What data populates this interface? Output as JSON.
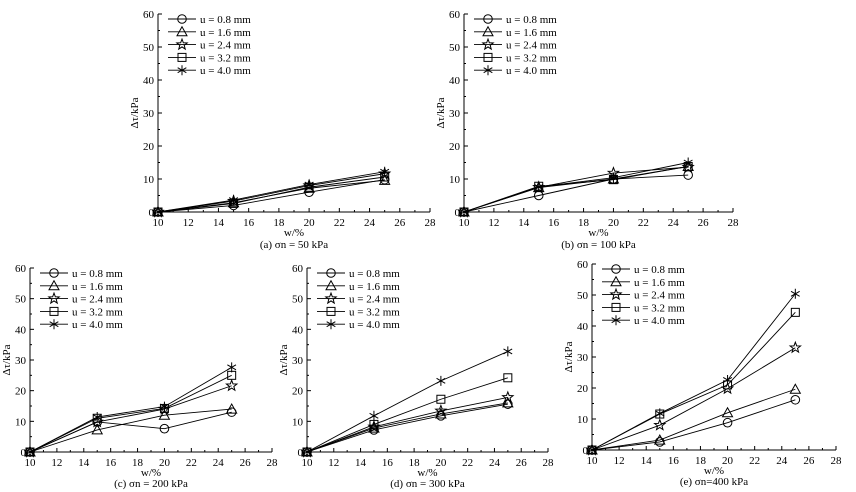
{
  "chart_data": [
    {
      "type": "line",
      "caption": "(a) σn = 50 kPa",
      "xlabel": "w/%",
      "ylabel": "Δτ/kPa",
      "xlim": [
        10,
        28
      ],
      "ylim": [
        0,
        60
      ],
      "xticks": [
        "10",
        "12",
        "14",
        "16",
        "18",
        "20",
        "22",
        "24",
        "26",
        "28"
      ],
      "yticks": [
        "0",
        "10",
        "20",
        "30",
        "40",
        "50",
        "60"
      ],
      "legend_position": "top-left",
      "x": [
        10,
        15,
        20,
        25
      ],
      "series": [
        {
          "name": "u = 0.8 mm",
          "marker": "circle",
          "values": [
            0,
            2.0,
            6.0,
            9.8
          ]
        },
        {
          "name": "u = 1.6 mm",
          "marker": "triangle",
          "values": [
            0,
            2.8,
            7.2,
            9.6
          ]
        },
        {
          "name": "u = 2.4 mm",
          "marker": "star",
          "values": [
            0,
            3.3,
            8.0,
            11.6
          ]
        },
        {
          "name": "u = 3.2 mm",
          "marker": "square",
          "values": [
            0,
            2.6,
            7.5,
            10.6
          ]
        },
        {
          "name": "u = 4.0 mm",
          "marker": "asterisk",
          "values": [
            0,
            3.6,
            8.3,
            12.2
          ]
        }
      ]
    },
    {
      "type": "line",
      "caption": "(b) σn = 100 kPa",
      "xlabel": "w/%",
      "ylabel": "Δτ/kPa",
      "xlim": [
        10,
        28
      ],
      "ylim": [
        0,
        60
      ],
      "xticks": [
        "10",
        "12",
        "14",
        "16",
        "18",
        "20",
        "22",
        "24",
        "26",
        "28"
      ],
      "yticks": [
        "0",
        "10",
        "20",
        "30",
        "40",
        "50",
        "60"
      ],
      "legend_position": "top-left",
      "x": [
        10,
        15,
        20,
        25
      ],
      "series": [
        {
          "name": "u = 0.8 mm",
          "marker": "circle",
          "values": [
            0,
            5.0,
            10.0,
            11.2
          ]
        },
        {
          "name": "u = 1.6 mm",
          "marker": "triangle",
          "values": [
            0,
            7.4,
            10.0,
            13.8
          ]
        },
        {
          "name": "u = 2.4 mm",
          "marker": "star",
          "values": [
            0,
            7.5,
            11.8,
            13.6
          ]
        },
        {
          "name": "u = 3.2 mm",
          "marker": "square",
          "values": [
            0,
            7.8,
            9.8,
            13.8
          ]
        },
        {
          "name": "u = 4.0 mm",
          "marker": "asterisk",
          "values": [
            0,
            7.6,
            10.4,
            15.0
          ]
        }
      ]
    },
    {
      "type": "line",
      "caption": "(c) σn = 200 kPa",
      "xlabel": "w/%",
      "ylabel": "Δτ/kPa",
      "xlim": [
        10,
        28
      ],
      "ylim": [
        0,
        60
      ],
      "xticks": [
        "10",
        "12",
        "14",
        "16",
        "18",
        "20",
        "22",
        "24",
        "26",
        "28"
      ],
      "yticks": [
        "0",
        "10",
        "20",
        "30",
        "40",
        "50",
        "60"
      ],
      "legend_position": "top-left",
      "x": [
        10,
        15,
        20,
        25
      ],
      "series": [
        {
          "name": "u = 0.8 mm",
          "marker": "circle",
          "values": [
            0,
            9.8,
            7.6,
            13.0
          ]
        },
        {
          "name": "u = 1.6 mm",
          "marker": "triangle",
          "values": [
            0,
            7.2,
            12.0,
            14.0
          ]
        },
        {
          "name": "u = 2.4 mm",
          "marker": "star",
          "values": [
            0,
            9.8,
            14.0,
            21.6
          ]
        },
        {
          "name": "u = 3.2 mm",
          "marker": "square",
          "values": [
            0,
            11.0,
            14.2,
            25.0
          ]
        },
        {
          "name": "u = 4.0 mm",
          "marker": "asterisk",
          "values": [
            0,
            11.4,
            14.8,
            27.6
          ]
        }
      ]
    },
    {
      "type": "line",
      "caption": "(d) σn = 300 kPa",
      "xlabel": "w/%",
      "ylabel": "Δτ/kPa",
      "xlim": [
        10,
        28
      ],
      "ylim": [
        0,
        60
      ],
      "xticks": [
        "10",
        "12",
        "14",
        "16",
        "18",
        "20",
        "22",
        "24",
        "26",
        "28"
      ],
      "yticks": [
        "0",
        "10",
        "20",
        "30",
        "40",
        "50",
        "60"
      ],
      "legend_position": "top-left",
      "x": [
        10,
        15,
        20,
        25
      ],
      "series": [
        {
          "name": "u = 0.8 mm",
          "marker": "circle",
          "values": [
            0,
            7.2,
            11.8,
            15.6
          ]
        },
        {
          "name": "u = 1.6 mm",
          "marker": "triangle",
          "values": [
            0,
            7.8,
            12.4,
            16.0
          ]
        },
        {
          "name": "u = 2.4 mm",
          "marker": "star",
          "values": [
            0,
            8.2,
            13.4,
            17.8
          ]
        },
        {
          "name": "u = 3.2 mm",
          "marker": "square",
          "values": [
            0,
            9.0,
            17.2,
            24.2
          ]
        },
        {
          "name": "u = 4.0 mm",
          "marker": "asterisk",
          "values": [
            0,
            11.8,
            23.2,
            32.8
          ]
        }
      ]
    },
    {
      "type": "line",
      "caption": "(e) σn=400 kPa",
      "xlabel": "w/%",
      "ylabel": "Δτ/kPa",
      "xlim": [
        10,
        28
      ],
      "ylim": [
        0,
        60
      ],
      "xticks": [
        "10",
        "12",
        "14",
        "16",
        "18",
        "20",
        "22",
        "24",
        "26",
        "28"
      ],
      "yticks": [
        "0",
        "10",
        "20",
        "30",
        "40",
        "50",
        "60"
      ],
      "legend_position": "top-left",
      "x": [
        10,
        15,
        20,
        25
      ],
      "series": [
        {
          "name": "u = 0.8 mm",
          "marker": "circle",
          "values": [
            0,
            2.6,
            8.8,
            16.2
          ]
        },
        {
          "name": "u = 1.6 mm",
          "marker": "triangle",
          "values": [
            0,
            3.2,
            12.0,
            19.6
          ]
        },
        {
          "name": "u = 2.4 mm",
          "marker": "star",
          "values": [
            0,
            8.0,
            19.8,
            33.0
          ]
        },
        {
          "name": "u = 3.2 mm",
          "marker": "square",
          "values": [
            0,
            11.6,
            21.0,
            44.4
          ]
        },
        {
          "name": "u = 4.0 mm",
          "marker": "asterisk",
          "values": [
            0,
            11.8,
            22.6,
            50.4
          ]
        }
      ]
    }
  ]
}
